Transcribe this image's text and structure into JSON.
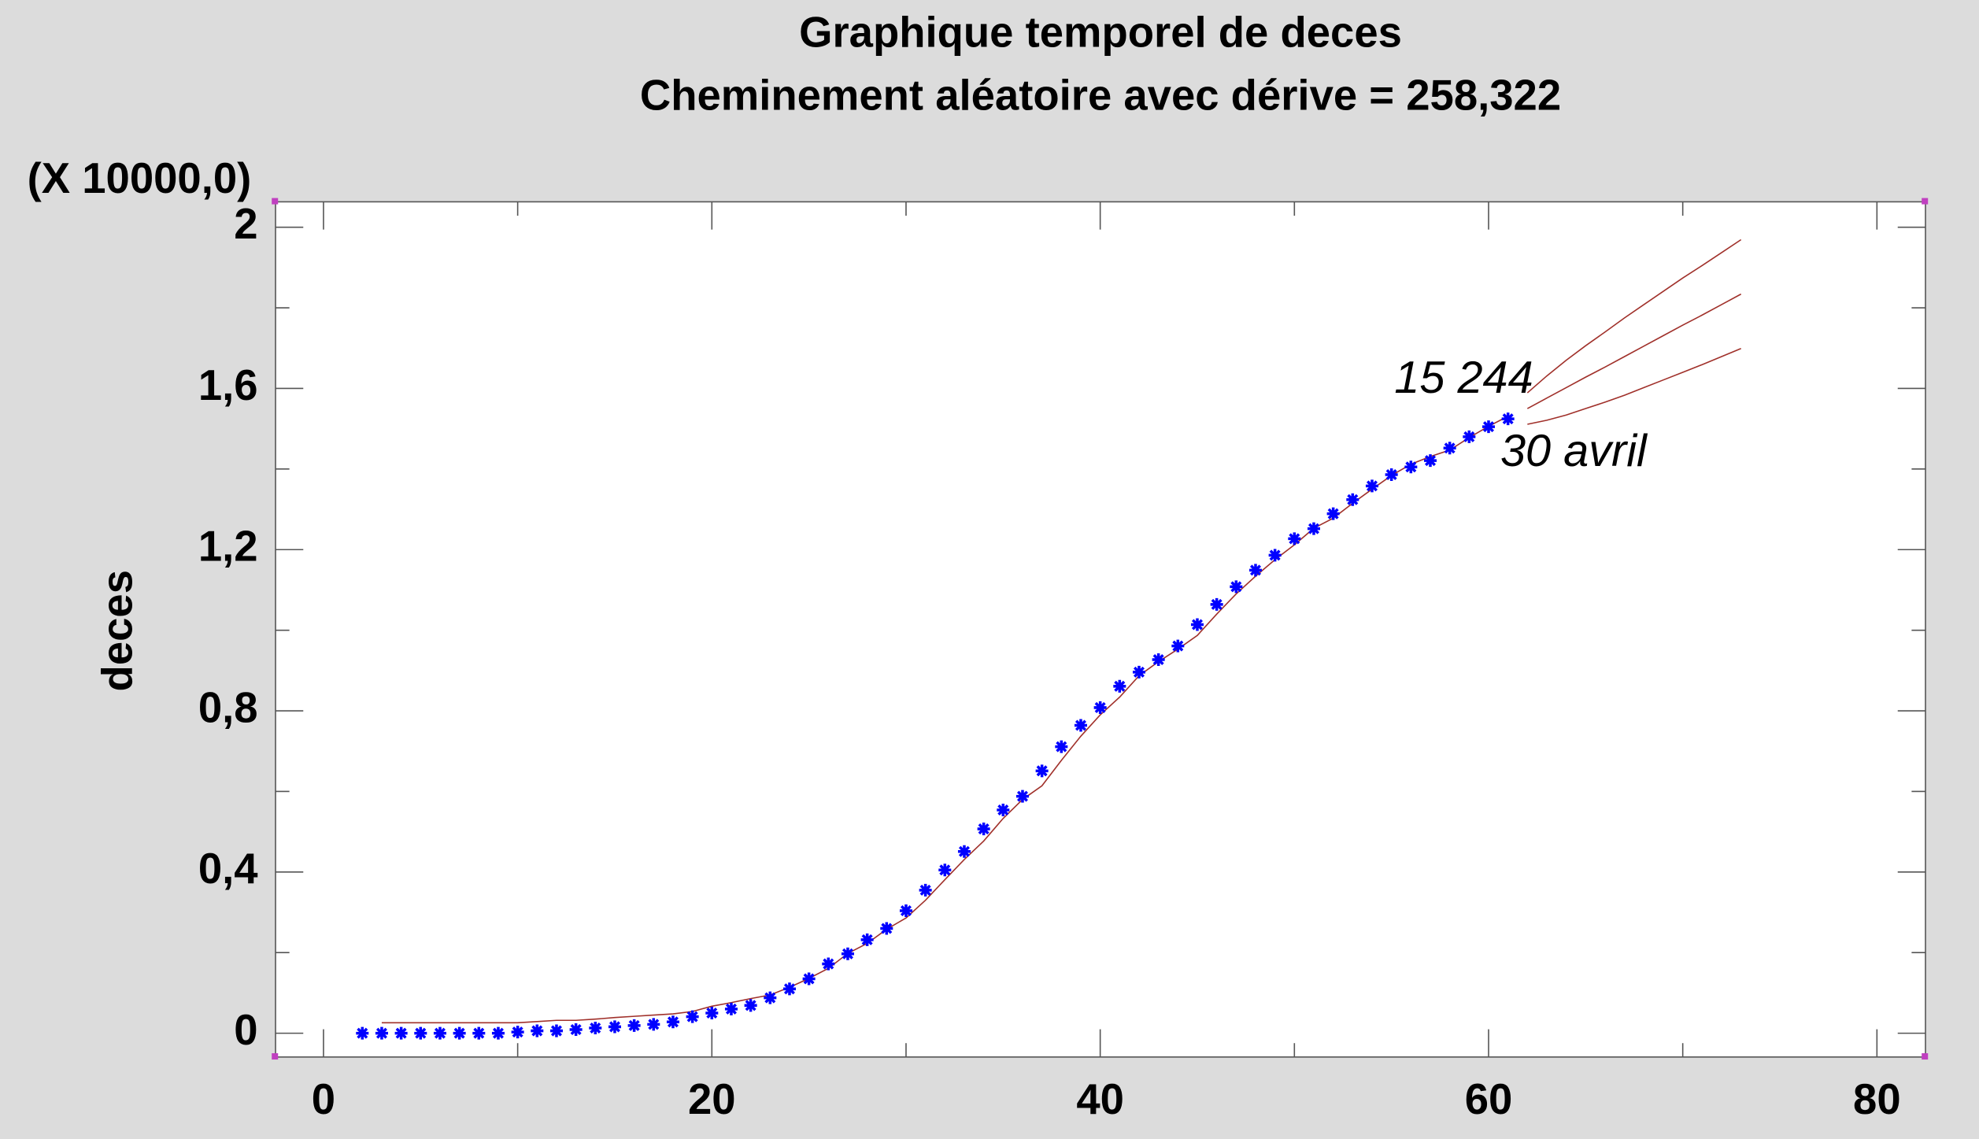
{
  "chart_data": {
    "type": "scatter",
    "title": "Graphique temporel de deces",
    "subtitle": "Cheminement aléatoire avec dérive = 258,322",
    "ylabel": "deces",
    "multiplier": "(X 10000,0)",
    "annotations": [
      "15 244",
      "30 avril"
    ],
    "xlim": [
      -2.47,
      82.5
    ],
    "ylim": [
      -0.059,
      2.063
    ],
    "xticks": [
      0,
      20,
      40,
      60,
      80
    ],
    "yticks": [
      0,
      {
        "value": 0.4,
        "label": "0,4"
      },
      {
        "value": 0.8,
        "label": "0,8"
      },
      {
        "value": 1.2,
        "label": "1,2"
      },
      {
        "value": 1.6,
        "label": "1,6"
      },
      2
    ],
    "minor_xticks": [
      10,
      30,
      50,
      70
    ],
    "minor_yticks": [
      0.2,
      0.6,
      1.0,
      1.4,
      1.8
    ],
    "x": [
      2,
      3,
      4,
      5,
      6,
      7,
      8,
      9,
      10,
      11,
      12,
      13,
      14,
      15,
      16,
      17,
      18,
      19,
      20,
      21,
      22,
      23,
      24,
      25,
      26,
      27,
      28,
      29,
      30,
      31,
      32,
      33,
      34,
      35,
      36,
      37,
      38,
      39,
      40,
      41,
      42,
      43,
      44,
      45,
      46,
      47,
      48,
      49,
      50,
      51,
      52,
      53,
      54,
      55,
      56,
      57,
      58,
      59,
      60,
      61
    ],
    "series": [
      {
        "color": "#0000ff",
        "marker": "star",
        "values": [
          0,
          0,
          0,
          0,
          0,
          0,
          0,
          0,
          0.003,
          0.006,
          0.006,
          0.009,
          0.013,
          0.016,
          0.019,
          0.022,
          0.028,
          0.041,
          0.05,
          0.06,
          0.069,
          0.088,
          0.11,
          0.135,
          0.172,
          0.197,
          0.232,
          0.26,
          0.304,
          0.355,
          0.405,
          0.451,
          0.507,
          0.554,
          0.588,
          0.651,
          0.711,
          0.764,
          0.808,
          0.861,
          0.896,
          0.927,
          0.961,
          1.014,
          1.064,
          1.108,
          1.149,
          1.186,
          1.227,
          1.252,
          1.289,
          1.324,
          1.358,
          1.386,
          1.405,
          1.421,
          1.452,
          1.48,
          1.505,
          1.5244
        ]
      },
      {
        "color": "#a0302a",
        "marker": "line",
        "values": [
          null,
          0.026,
          0.026,
          0.026,
          0.026,
          0.026,
          0.026,
          0.026,
          0.026,
          0.029,
          0.032,
          0.032,
          0.035,
          0.039,
          0.042,
          0.045,
          0.048,
          0.054,
          0.067,
          0.076,
          0.086,
          0.095,
          0.114,
          0.136,
          0.161,
          0.198,
          0.223,
          0.258,
          0.286,
          0.33,
          0.381,
          0.431,
          0.477,
          0.533,
          0.58,
          0.614,
          0.677,
          0.737,
          0.79,
          0.834,
          0.887,
          0.922,
          0.953,
          0.987,
          1.04,
          1.09,
          1.134,
          1.175,
          1.212,
          1.253,
          1.278,
          1.315,
          1.35,
          1.384,
          1.412,
          1.431,
          1.447,
          1.478,
          1.506,
          1.531
        ]
      }
    ],
    "forecast": {
      "color": "#a0302a",
      "x": [
        62,
        63,
        64,
        65,
        66,
        67,
        68,
        69,
        70,
        71,
        72,
        73
      ],
      "series": [
        {
          "values": [
            1.589,
            1.631,
            1.67,
            1.706,
            1.74,
            1.775,
            1.808,
            1.841,
            1.874,
            1.905,
            1.937,
            1.969
          ]
        },
        {
          "values": [
            1.55,
            1.576,
            1.602,
            1.628,
            1.653,
            1.679,
            1.705,
            1.731,
            1.757,
            1.782,
            1.808,
            1.834
          ]
        },
        {
          "values": [
            1.511,
            1.521,
            1.534,
            1.55,
            1.566,
            1.583,
            1.602,
            1.621,
            1.64,
            1.659,
            1.679,
            1.699
          ]
        }
      ]
    }
  }
}
